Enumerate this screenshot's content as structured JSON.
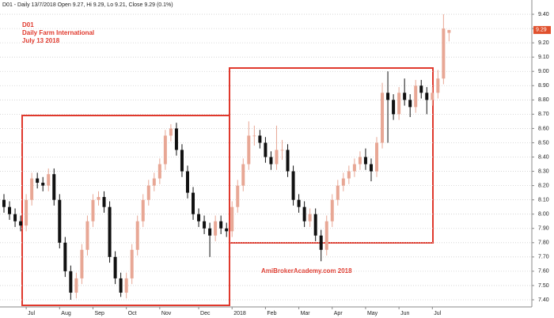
{
  "chart_data": {
    "type": "candlestick",
    "title": "D01 - Daily 13/7/2018 Open 9.27, Hi 9.29, Lo 9.21, Close 9.29 (0.1%)",
    "annotations": [
      "D01",
      "Daily Farm International",
      "July 13 2018",
      "AmiBrokerAcademy.com  2018"
    ],
    "categories": [
      null,
      null,
      null,
      null,
      "Jul",
      null,
      null,
      null,
      null,
      null,
      "Aug",
      null,
      null,
      null,
      null,
      null,
      "Sep",
      null,
      null,
      null,
      null,
      null,
      "Oct",
      null,
      null,
      null,
      null,
      null,
      "Nov",
      null,
      null,
      null,
      null,
      null,
      null,
      "Dec",
      null,
      null,
      null,
      null,
      null,
      "2018",
      null,
      null,
      null,
      null,
      null,
      "Feb",
      null,
      null,
      null,
      null,
      null,
      "Mar",
      null,
      null,
      null,
      null,
      null,
      "Apr",
      null,
      null,
      null,
      null,
      null,
      "May",
      null,
      null,
      null,
      null,
      null,
      "Jun",
      null,
      null,
      null,
      null,
      null,
      "Jul",
      null,
      null,
      null
    ],
    "open": [
      8.1,
      8.05,
      8.0,
      7.95,
      7.92,
      8.1,
      8.25,
      8.22,
      8.2,
      8.28,
      8.1,
      7.8,
      7.6,
      7.45,
      7.55,
      7.75,
      7.95,
      8.1,
      8.12,
      8.05,
      7.7,
      7.55,
      7.45,
      7.55,
      7.75,
      7.95,
      8.1,
      8.2,
      8.25,
      8.35,
      8.55,
      8.6,
      8.45,
      8.3,
      8.15,
      8.0,
      7.95,
      7.9,
      7.85,
      7.95,
      7.9,
      7.88,
      8.05,
      8.2,
      8.35,
      8.55,
      8.55,
      8.5,
      8.4,
      8.35,
      8.45,
      8.45,
      8.3,
      8.1,
      8.05,
      7.95,
      8.0,
      7.85,
      7.75,
      7.95,
      8.1,
      8.2,
      8.25,
      8.3,
      8.35,
      8.4,
      8.35,
      8.3,
      8.5,
      8.85,
      8.8,
      8.7,
      8.85,
      8.8,
      8.75,
      8.9,
      8.85,
      8.8,
      8.85,
      8.95,
      9.27
    ],
    "high": [
      8.14,
      8.09,
      8.04,
      7.99,
      8.14,
      8.29,
      8.29,
      8.26,
      8.32,
      8.32,
      8.14,
      7.84,
      7.64,
      7.59,
      7.79,
      7.99,
      8.14,
      8.16,
      8.16,
      8.09,
      7.74,
      7.59,
      7.59,
      7.79,
      7.99,
      8.14,
      8.24,
      8.29,
      8.39,
      8.59,
      8.63,
      8.64,
      8.49,
      8.34,
      8.19,
      8.04,
      7.99,
      7.94,
      7.99,
      7.99,
      7.94,
      8.09,
      8.24,
      8.39,
      8.65,
      8.62,
      8.59,
      8.54,
      8.44,
      8.62,
      8.52,
      8.49,
      8.34,
      8.14,
      8.09,
      8.04,
      8.04,
      7.89,
      7.99,
      8.14,
      8.24,
      8.29,
      8.34,
      8.39,
      8.44,
      8.46,
      8.39,
      8.54,
      8.92,
      9.0,
      8.84,
      8.89,
      8.95,
      8.84,
      8.94,
      8.94,
      8.89,
      8.89,
      9.01,
      9.4,
      9.29
    ],
    "low": [
      8.01,
      7.96,
      7.91,
      7.88,
      7.88,
      8.06,
      8.18,
      8.16,
      8.16,
      8.06,
      7.76,
      7.56,
      7.4,
      7.41,
      7.51,
      7.71,
      7.91,
      8.06,
      8.01,
      7.66,
      7.51,
      7.42,
      7.41,
      7.51,
      7.71,
      7.91,
      8.06,
      8.16,
      8.21,
      8.31,
      8.51,
      8.41,
      8.26,
      8.11,
      7.96,
      7.91,
      7.86,
      7.7,
      7.81,
      7.86,
      7.84,
      7.84,
      8.01,
      8.16,
      8.31,
      8.48,
      8.46,
      8.36,
      8.31,
      8.31,
      8.38,
      8.26,
      8.06,
      8.01,
      7.91,
      7.91,
      7.81,
      7.67,
      7.71,
      7.91,
      8.06,
      8.16,
      8.21,
      8.26,
      8.31,
      8.31,
      8.23,
      8.26,
      8.46,
      8.5,
      8.66,
      8.66,
      8.76,
      8.68,
      8.71,
      8.81,
      8.7,
      8.76,
      8.81,
      8.91,
      9.21
    ],
    "close": [
      8.05,
      8.0,
      7.95,
      7.92,
      8.1,
      8.25,
      8.22,
      8.2,
      8.28,
      8.1,
      7.8,
      7.6,
      7.45,
      7.55,
      7.75,
      7.95,
      8.1,
      8.12,
      8.05,
      7.7,
      7.55,
      7.45,
      7.55,
      7.75,
      7.95,
      8.1,
      8.2,
      8.25,
      8.35,
      8.55,
      8.6,
      8.45,
      8.3,
      8.15,
      8.0,
      7.95,
      7.9,
      7.85,
      7.95,
      7.9,
      7.88,
      8.05,
      8.2,
      8.35,
      8.55,
      8.55,
      8.5,
      8.4,
      8.35,
      8.45,
      8.45,
      8.3,
      8.1,
      8.05,
      7.95,
      8.0,
      7.85,
      7.75,
      7.95,
      8.1,
      8.2,
      8.25,
      8.3,
      8.35,
      8.4,
      8.35,
      8.3,
      8.5,
      8.85,
      8.8,
      8.7,
      8.85,
      8.8,
      8.75,
      8.9,
      8.85,
      8.8,
      8.85,
      8.95,
      9.3,
      9.29
    ],
    "up_color": "#e8a795",
    "down_color": "#111111",
    "ylim": [
      7.35,
      9.5
    ],
    "yticks": [
      {
        "value": 7.4,
        "label": "7.40"
      },
      {
        "value": 7.5,
        "label": "7.50"
      },
      {
        "value": 7.6,
        "label": "7.60"
      },
      {
        "value": 7.7,
        "label": "7.70"
      },
      {
        "value": 7.8,
        "label": "7.80"
      },
      {
        "value": 7.9,
        "label": "7.90"
      },
      {
        "value": 8.0,
        "label": "8.00"
      },
      {
        "value": 8.1,
        "label": "8.10"
      },
      {
        "value": 8.2,
        "label": "8.20"
      },
      {
        "value": 8.3,
        "label": "8.30"
      },
      {
        "value": 8.4,
        "label": "8.40"
      },
      {
        "value": 8.5,
        "label": "8.50"
      },
      {
        "value": 8.6,
        "label": "8.60"
      },
      {
        "value": 8.7,
        "label": "8.70"
      },
      {
        "value": 8.8,
        "label": "8.80"
      },
      {
        "value": 8.9,
        "label": "8.90"
      },
      {
        "value": 9.0,
        "label": "9.00"
      },
      {
        "value": 9.1,
        "label": "9.10"
      },
      {
        "value": 9.2,
        "label": "9.20"
      },
      {
        "value": 9.3,
        "label": "9.30"
      },
      {
        "value": 9.4,
        "label": "9.40"
      }
    ],
    "grid": true
  }
}
